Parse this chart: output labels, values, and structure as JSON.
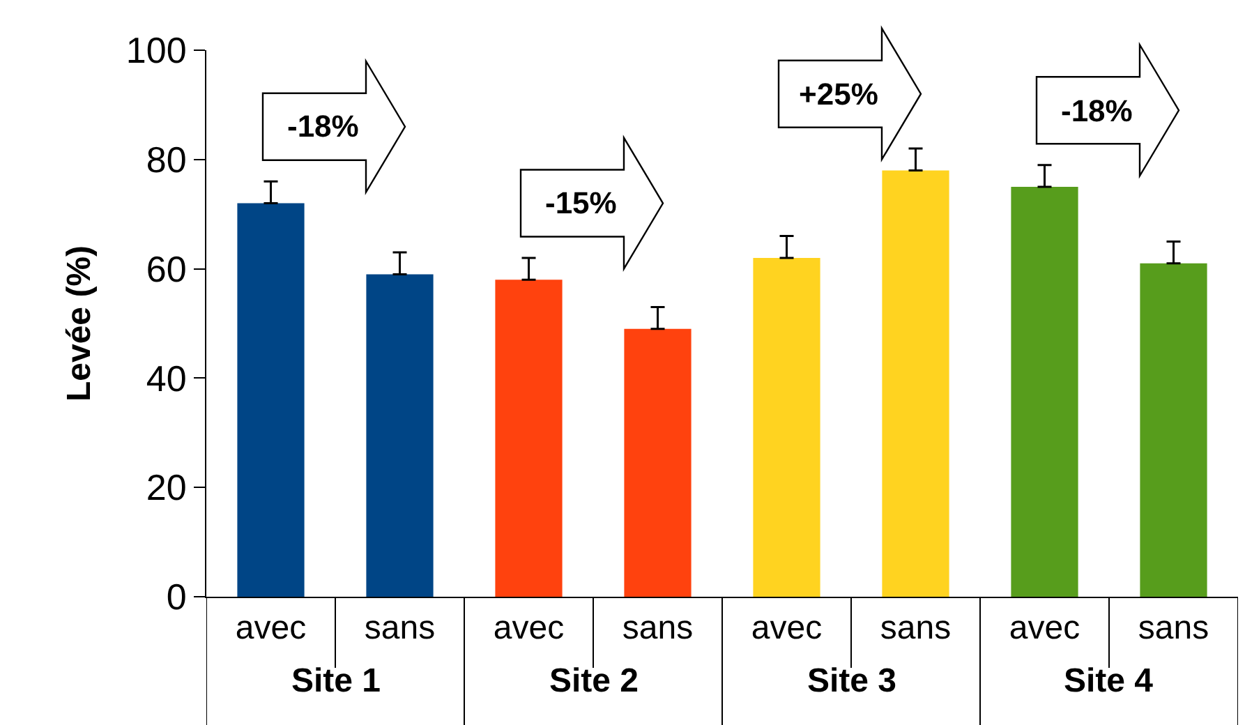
{
  "chart_data": {
    "type": "bar",
    "ylabel": "Levée (%)",
    "categories": [
      "avec",
      "sans",
      "avec",
      "sans",
      "avec",
      "sans",
      "avec",
      "sans"
    ],
    "values": [
      72,
      59,
      58,
      49,
      62,
      78,
      75,
      61
    ],
    "errors": [
      [
        72,
        76
      ],
      [
        59,
        63
      ],
      [
        58,
        62
      ],
      [
        49,
        53
      ],
      [
        62,
        66
      ],
      [
        78,
        82
      ],
      [
        75,
        79
      ],
      [
        61,
        65
      ]
    ],
    "colors": [
      "#004586",
      "#004586",
      "#ff420e",
      "#ff420e",
      "#ffd320",
      "#ffd320",
      "#579d1c",
      "#579d1c"
    ],
    "ylim": [
      0,
      100
    ],
    "yticks": [
      0,
      20,
      40,
      60,
      80,
      100
    ],
    "annotations": [
      "Site 1",
      "Site 2",
      "Site 3",
      "Site 4",
      "-18%",
      "-15%",
      "+25%",
      "-18%"
    ],
    "grid": false
  }
}
